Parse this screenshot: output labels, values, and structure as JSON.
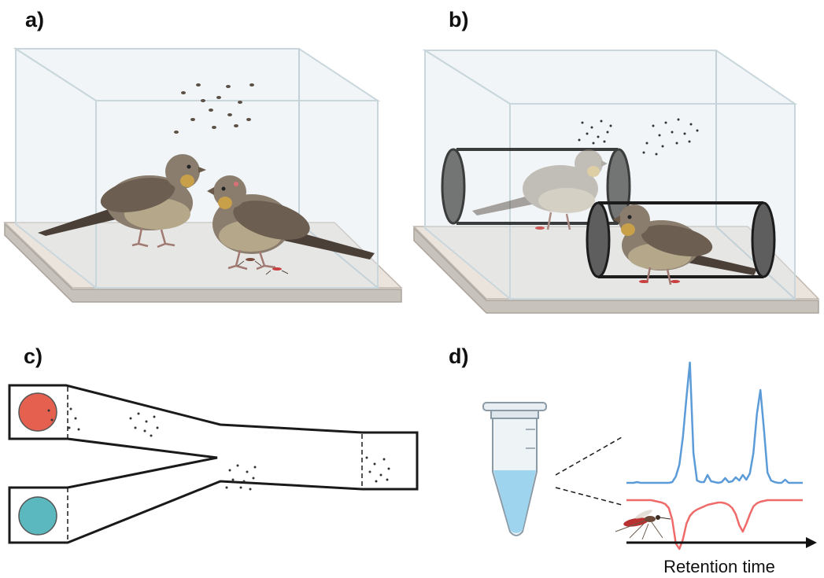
{
  "panels": {
    "a": {
      "label": "a)"
    },
    "b": {
      "label": "b)"
    },
    "c": {
      "label": "c)"
    },
    "d": {
      "label": "d)"
    }
  },
  "colors": {
    "glass": "#dfe9ee",
    "floor": "#ebe4dd",
    "odor_chamber_red": "#e66050",
    "odor_chamber_teal": "#5cb8bf",
    "trace_blue": "#5b9bd8",
    "trace_red": "#f06a6a",
    "tube_liquid": "#9fd4ee"
  },
  "icons": [
    "bird-icon",
    "mosquito-icon",
    "mesh-cage-icon",
    "olfactometer-icon",
    "sample-tube-icon"
  ],
  "chart_data": {
    "type": "line",
    "title": "",
    "xlabel": "Retention time",
    "ylabel": "",
    "x": [
      0,
      2,
      4,
      6,
      8,
      10,
      12,
      14,
      16,
      18,
      20,
      22,
      24,
      26,
      28,
      30,
      32,
      34,
      36,
      38,
      40,
      42,
      44,
      46,
      48,
      50,
      52,
      54,
      56,
      58,
      60,
      62,
      64,
      66,
      68,
      70,
      72,
      74,
      76,
      78,
      80,
      82,
      84,
      86,
      88,
      90,
      92,
      94,
      96,
      98,
      100
    ],
    "series": [
      {
        "values": [
          2,
          2,
          2,
          3,
          2,
          2,
          2,
          2,
          2,
          2,
          2,
          2,
          2,
          3,
          10,
          25,
          60,
          110,
          155,
          40,
          5,
          3,
          3,
          12,
          4,
          3,
          2,
          3,
          8,
          3,
          4,
          9,
          5,
          12,
          6,
          14,
          40,
          90,
          120,
          70,
          15,
          5,
          3,
          2,
          2,
          6,
          2,
          2,
          2,
          2,
          2
        ]
      },
      {
        "values": [
          0,
          0,
          0,
          0,
          0,
          0,
          0,
          0,
          -1,
          -2,
          -3,
          -5,
          -10,
          -25,
          -55,
          -62,
          -50,
          -30,
          -20,
          -15,
          -12,
          -10,
          -8,
          -6,
          -5,
          -4,
          -3,
          -3,
          -4,
          -6,
          -10,
          -18,
          -32,
          -40,
          -30,
          -18,
          -8,
          -4,
          -2,
          -1,
          0,
          0,
          0,
          0,
          0,
          0,
          0,
          0,
          0,
          0,
          0
        ]
      }
    ]
  }
}
